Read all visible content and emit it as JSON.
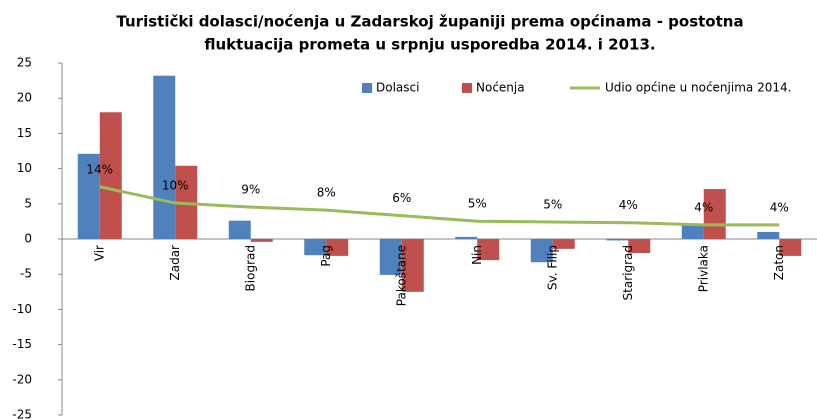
{
  "chart_data": {
    "type": "bar",
    "title": [
      "Turistički dolasci/noćenja u Zadarskoj županiji prema općinama - postotna",
      "fluktuacija prometa u srpnju usporedba 2014. i 2013."
    ],
    "categories": [
      "Vir",
      "Zadar",
      "Biograd",
      "Pag",
      "Pakoštane",
      "Nin",
      "Sv. Filip",
      "Starigrad",
      "Privlaka",
      "Zaton"
    ],
    "series": [
      {
        "name": "Dolasci",
        "color": "#4f81bd",
        "values": [
          12.1,
          23.2,
          2.6,
          -2.3,
          -5.1,
          0.3,
          -3.3,
          -0.2,
          2.0,
          1.0
        ]
      },
      {
        "name": "Noćenja",
        "color": "#c0504d",
        "values": [
          18.0,
          10.4,
          -0.4,
          -2.4,
          -7.5,
          -3.0,
          -1.4,
          -2.0,
          7.1,
          -2.4
        ]
      },
      {
        "name": "Udio općine u noćenjima 2014.",
        "color": "#9bbb59",
        "type": "line",
        "axis": "y2",
        "values": [
          14.1,
          9.7,
          8.6,
          7.8,
          6.3,
          4.8,
          4.6,
          4.4,
          3.8,
          3.8
        ],
        "value_labels": [
          "14%",
          "10%",
          "9%",
          "8%",
          "6%",
          "5%",
          "5%",
          "4%",
          "4%",
          "4%"
        ]
      }
    ],
    "ylim": [
      -25,
      25
    ],
    "yticks": [
      -25,
      -20,
      -15,
      -10,
      -5,
      0,
      5,
      10,
      15,
      20,
      25
    ],
    "y2lim": [
      -47.5,
      47.5
    ],
    "grid": false,
    "legend": "top-right"
  }
}
